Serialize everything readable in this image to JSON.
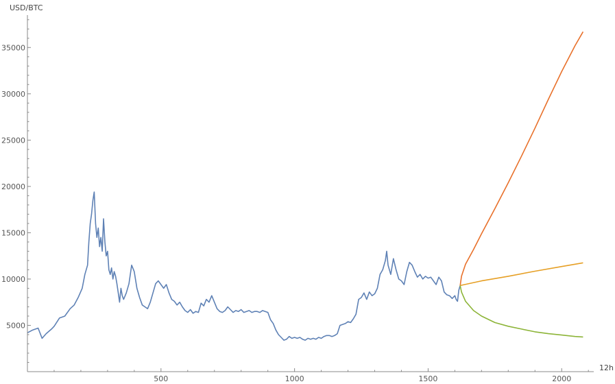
{
  "chart_data": {
    "type": "line",
    "xlabel": "12h",
    "ylabel": "USD/BTC",
    "xlim": [
      0,
      2120
    ],
    "ylim": [
      0,
      38500
    ],
    "x_ticks": [
      500,
      1000,
      1500,
      2000
    ],
    "y_ticks": [
      5000,
      10000,
      15000,
      20000,
      25000,
      30000,
      35000
    ],
    "grid": false,
    "legend": "none",
    "series": [
      {
        "color": "#5e81b5",
        "points": [
          [
            0,
            4200
          ],
          [
            20,
            4500
          ],
          [
            40,
            4700
          ],
          [
            55,
            3600
          ],
          [
            70,
            4100
          ],
          [
            90,
            4600
          ],
          [
            100,
            4900
          ],
          [
            120,
            5800
          ],
          [
            140,
            6000
          ],
          [
            160,
            6800
          ],
          [
            175,
            7200
          ],
          [
            190,
            8000
          ],
          [
            205,
            9000
          ],
          [
            215,
            10500
          ],
          [
            225,
            11500
          ],
          [
            230,
            14000
          ],
          [
            235,
            16000
          ],
          [
            240,
            17000
          ],
          [
            245,
            18500
          ],
          [
            250,
            19400
          ],
          [
            255,
            16000
          ],
          [
            260,
            14500
          ],
          [
            265,
            15500
          ],
          [
            270,
            13500
          ],
          [
            275,
            14500
          ],
          [
            280,
            13000
          ],
          [
            285,
            16500
          ],
          [
            290,
            14000
          ],
          [
            295,
            12500
          ],
          [
            300,
            13000
          ],
          [
            305,
            11000
          ],
          [
            310,
            10500
          ],
          [
            315,
            11200
          ],
          [
            320,
            10000
          ],
          [
            325,
            10800
          ],
          [
            330,
            10300
          ],
          [
            335,
            9500
          ],
          [
            340,
            8500
          ],
          [
            345,
            7500
          ],
          [
            350,
            9000
          ],
          [
            355,
            8200
          ],
          [
            360,
            7800
          ],
          [
            370,
            8500
          ],
          [
            380,
            9500
          ],
          [
            390,
            11500
          ],
          [
            400,
            10800
          ],
          [
            410,
            9000
          ],
          [
            420,
            8000
          ],
          [
            430,
            7200
          ],
          [
            440,
            7000
          ],
          [
            450,
            6800
          ],
          [
            460,
            7500
          ],
          [
            470,
            8500
          ],
          [
            480,
            9500
          ],
          [
            490,
            9800
          ],
          [
            500,
            9400
          ],
          [
            510,
            9000
          ],
          [
            520,
            9400
          ],
          [
            530,
            8500
          ],
          [
            540,
            7800
          ],
          [
            550,
            7600
          ],
          [
            560,
            7200
          ],
          [
            570,
            7500
          ],
          [
            580,
            7000
          ],
          [
            590,
            6600
          ],
          [
            600,
            6400
          ],
          [
            610,
            6700
          ],
          [
            620,
            6300
          ],
          [
            630,
            6500
          ],
          [
            640,
            6400
          ],
          [
            650,
            7400
          ],
          [
            660,
            7100
          ],
          [
            670,
            7800
          ],
          [
            680,
            7500
          ],
          [
            690,
            8200
          ],
          [
            700,
            7500
          ],
          [
            710,
            6800
          ],
          [
            720,
            6500
          ],
          [
            730,
            6400
          ],
          [
            740,
            6600
          ],
          [
            750,
            7000
          ],
          [
            760,
            6700
          ],
          [
            770,
            6400
          ],
          [
            780,
            6600
          ],
          [
            790,
            6500
          ],
          [
            800,
            6700
          ],
          [
            810,
            6400
          ],
          [
            820,
            6500
          ],
          [
            830,
            6600
          ],
          [
            840,
            6400
          ],
          [
            850,
            6500
          ],
          [
            860,
            6500
          ],
          [
            870,
            6400
          ],
          [
            880,
            6600
          ],
          [
            890,
            6500
          ],
          [
            900,
            6400
          ],
          [
            910,
            5600
          ],
          [
            920,
            5200
          ],
          [
            930,
            4500
          ],
          [
            940,
            4000
          ],
          [
            950,
            3700
          ],
          [
            960,
            3400
          ],
          [
            970,
            3500
          ],
          [
            980,
            3800
          ],
          [
            990,
            3600
          ],
          [
            1000,
            3700
          ],
          [
            1010,
            3600
          ],
          [
            1020,
            3700
          ],
          [
            1030,
            3500
          ],
          [
            1040,
            3400
          ],
          [
            1050,
            3600
          ],
          [
            1060,
            3500
          ],
          [
            1070,
            3600
          ],
          [
            1080,
            3500
          ],
          [
            1090,
            3700
          ],
          [
            1100,
            3600
          ],
          [
            1110,
            3800
          ],
          [
            1120,
            3900
          ],
          [
            1130,
            3900
          ],
          [
            1140,
            3800
          ],
          [
            1150,
            3900
          ],
          [
            1160,
            4100
          ],
          [
            1170,
            5000
          ],
          [
            1180,
            5100
          ],
          [
            1190,
            5200
          ],
          [
            1200,
            5400
          ],
          [
            1210,
            5300
          ],
          [
            1220,
            5700
          ],
          [
            1230,
            6200
          ],
          [
            1240,
            7800
          ],
          [
            1250,
            8000
          ],
          [
            1260,
            8500
          ],
          [
            1270,
            7800
          ],
          [
            1280,
            8600
          ],
          [
            1290,
            8200
          ],
          [
            1300,
            8400
          ],
          [
            1310,
            9000
          ],
          [
            1320,
            10500
          ],
          [
            1330,
            11000
          ],
          [
            1340,
            12000
          ],
          [
            1345,
            13000
          ],
          [
            1350,
            11500
          ],
          [
            1360,
            10500
          ],
          [
            1370,
            12200
          ],
          [
            1380,
            11000
          ],
          [
            1390,
            10000
          ],
          [
            1400,
            9800
          ],
          [
            1410,
            9400
          ],
          [
            1420,
            10800
          ],
          [
            1430,
            11800
          ],
          [
            1440,
            11500
          ],
          [
            1450,
            10800
          ],
          [
            1460,
            10200
          ],
          [
            1470,
            10500
          ],
          [
            1480,
            10000
          ],
          [
            1490,
            10300
          ],
          [
            1500,
            10100
          ],
          [
            1510,
            10200
          ],
          [
            1520,
            9800
          ],
          [
            1530,
            9400
          ],
          [
            1540,
            10200
          ],
          [
            1550,
            9800
          ],
          [
            1560,
            8600
          ],
          [
            1570,
            8300
          ],
          [
            1580,
            8200
          ],
          [
            1590,
            7900
          ],
          [
            1600,
            8200
          ],
          [
            1605,
            7800
          ],
          [
            1610,
            7600
          ],
          [
            1615,
            8800
          ],
          [
            1620,
            9300
          ]
        ]
      },
      {
        "color": "#e8702a",
        "points": [
          [
            1620,
            9300
          ],
          [
            1625,
            10300
          ],
          [
            1640,
            11600
          ],
          [
            1670,
            13200
          ],
          [
            1700,
            14900
          ],
          [
            1750,
            17600
          ],
          [
            1800,
            20400
          ],
          [
            1850,
            23300
          ],
          [
            1900,
            26300
          ],
          [
            1950,
            29400
          ],
          [
            2000,
            32400
          ],
          [
            2050,
            35200
          ],
          [
            2080,
            36700
          ]
        ]
      },
      {
        "color": "#e69f24",
        "points": [
          [
            1620,
            9300
          ],
          [
            1700,
            9800
          ],
          [
            1800,
            10300
          ],
          [
            1900,
            10850
          ],
          [
            2000,
            11350
          ],
          [
            2080,
            11750
          ]
        ]
      },
      {
        "color": "#8cb437",
        "points": [
          [
            1620,
            9300
          ],
          [
            1625,
            8600
          ],
          [
            1640,
            7600
          ],
          [
            1670,
            6600
          ],
          [
            1700,
            6000
          ],
          [
            1750,
            5300
          ],
          [
            1800,
            4900
          ],
          [
            1850,
            4600
          ],
          [
            1900,
            4300
          ],
          [
            1950,
            4100
          ],
          [
            2000,
            3950
          ],
          [
            2050,
            3800
          ],
          [
            2080,
            3750
          ]
        ]
      }
    ]
  }
}
